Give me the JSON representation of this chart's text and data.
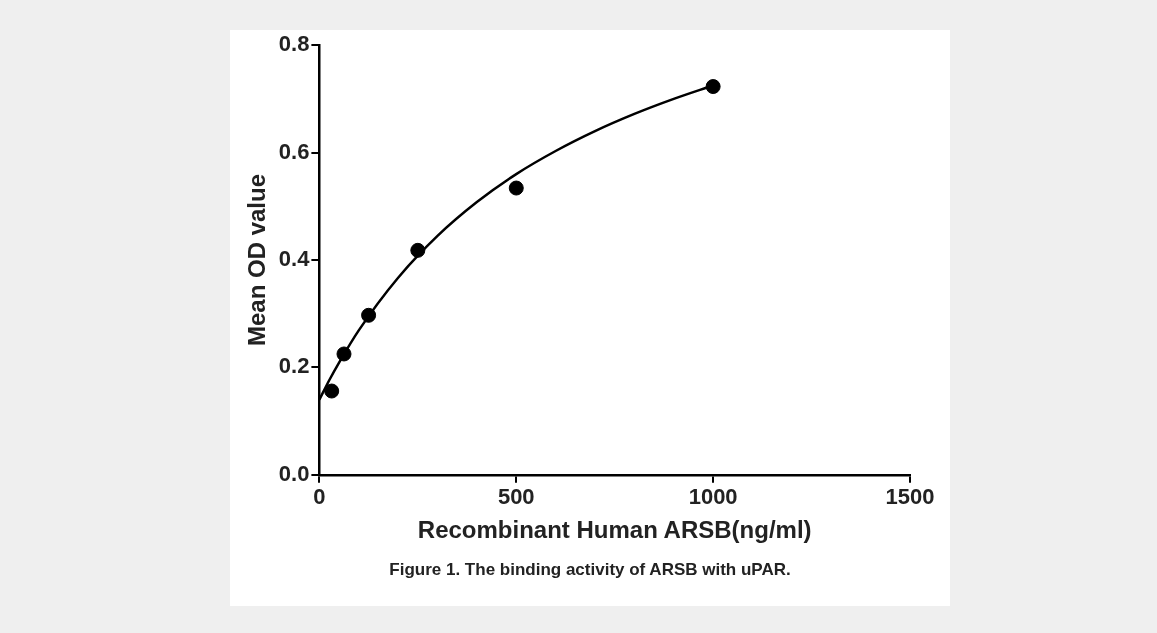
{
  "chart_data": {
    "type": "scatter",
    "xlabel": "Recombinant Human ARSB(ng/ml)",
    "ylabel": "Mean OD value",
    "annotations": [
      "Figure 1. The binding activity of ARSB with uPAR."
    ],
    "xlim": [
      0,
      1500
    ],
    "xticks": [
      0,
      500,
      1000,
      1500
    ],
    "ylim": [
      0,
      0.8
    ],
    "yticks": [
      {
        "value": 0,
        "label": "0.0"
      },
      0.2,
      0.4,
      0.6,
      0.8
    ],
    "grid": false,
    "legend": false,
    "series": [
      {
        "type": "scatter",
        "color": "#000000",
        "marker": "circle",
        "x": [
          31.25,
          62.5,
          125,
          250,
          500,
          1000
        ],
        "values": [
          0.156,
          0.225,
          0.297,
          0.418,
          0.534,
          0.723
        ]
      },
      {
        "type": "line",
        "color": "#000000",
        "marker": "none",
        "line_style": "solid",
        "x": [
          0,
          25,
          50,
          100,
          200,
          300,
          400,
          500,
          600,
          700,
          800,
          900,
          1000
        ],
        "values": [
          0.14,
          0.176,
          0.209,
          0.269,
          0.367,
          0.445,
          0.508,
          0.56,
          0.603,
          0.64,
          0.672,
          0.7,
          0.725
        ]
      }
    ]
  }
}
